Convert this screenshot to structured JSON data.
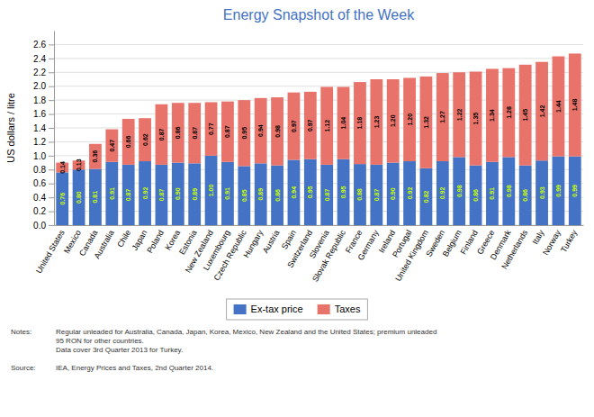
{
  "chart_data": {
    "type": "bar",
    "title": "Energy Snapshot of the Week",
    "y_label": "US dollars / litre",
    "categories": [
      "United States",
      "Mexico",
      "Canada",
      "Australia",
      "Chile",
      "Japan",
      "Poland",
      "Korea",
      "Estonia",
      "New Zealand",
      "Luxembourg",
      "Czech Republic",
      "Hungary",
      "Austria",
      "Spain",
      "Switzerland",
      "Slovenia",
      "Slovak Republic",
      "France",
      "Germany",
      "Ireland",
      "Portugal",
      "United Kingdom",
      "Sweden",
      "Belgium",
      "Finland",
      "Greece",
      "Denmark",
      "Netherlands",
      "Italy",
      "Norway",
      "Turkey"
    ],
    "series": [
      {
        "name": "Ex-tax price",
        "color": "#4472C4",
        "values": [
          0.76,
          0.8,
          0.81,
          0.91,
          0.87,
          0.92,
          0.87,
          0.9,
          0.89,
          1.0,
          0.91,
          0.85,
          0.89,
          0.86,
          0.94,
          0.95,
          0.87,
          0.95,
          0.88,
          0.87,
          0.9,
          0.92,
          0.82,
          0.92,
          0.98,
          0.86,
          0.91,
          0.98,
          0.86,
          0.93,
          0.99,
          0.99
        ],
        "value_labels": [
          "0.76",
          "0.80",
          "0.81",
          "0.91",
          "0.87",
          "0.92",
          "0.87",
          "0.90",
          "0.89",
          "1.00",
          "0.91",
          "0.85",
          "0.89",
          "0.86",
          "0.94",
          "0.95",
          "0.87",
          "0.95",
          "0.88",
          "0.87",
          "0.90",
          "0.92",
          "0.82",
          "0.92",
          "0.98",
          "0.86",
          "0.91",
          "0.98",
          "0.86",
          "0.93",
          "0.99",
          "0.99"
        ]
      },
      {
        "name": "Taxes",
        "color": "#E8736A",
        "values": [
          0.14,
          0.13,
          0.36,
          0.47,
          0.66,
          0.62,
          0.87,
          0.86,
          0.87,
          0.77,
          0.87,
          0.95,
          0.94,
          0.98,
          0.97,
          0.97,
          1.12,
          1.04,
          1.18,
          1.23,
          1.2,
          1.2,
          1.32,
          1.27,
          1.22,
          1.35,
          1.34,
          1.28,
          1.45,
          1.42,
          1.44,
          1.48
        ],
        "value_labels": [
          "0.14",
          "0.13",
          "0.36",
          "0.47",
          "0.66",
          "0.62",
          "0.87",
          "0.86",
          "0.87",
          "0.77",
          "0.87",
          "0.95",
          "0.94",
          "0.98",
          "0.97",
          "0.97",
          "1.12",
          "1.04",
          "1.18",
          "1.23",
          "1.20",
          "1.20",
          "1.32",
          "1.27",
          "1.22",
          "1.35",
          "1.34",
          "1.28",
          "1.45",
          "1.42",
          "1.44",
          "1.48"
        ]
      }
    ],
    "stacked": true,
    "data_labels": true,
    "ylim": [
      0,
      2.8
    ],
    "yticks": [
      {
        "value": 0.0,
        "label": "0.0"
      },
      0.2,
      0.4,
      0.6,
      0.8,
      {
        "value": 1.0,
        "label": "1.0"
      },
      1.2,
      1.4,
      1.6,
      1.8,
      {
        "value": 2.0,
        "label": "2.0"
      },
      2.2,
      2.4,
      2.6
    ],
    "grid": true,
    "legend": "bottom",
    "annotations": [
      {
        "label": "Notes:",
        "lines": [
          "Regular unleaded for Australia, Canada, Japan, Korea, Mexico, New Zealand and the United States; premium unleaded",
          "95 RON for other countries.",
          "Data cover 3rd Quarter 2013 for Turkey."
        ]
      },
      {
        "label": "Source:",
        "lines": [
          "IEA, Energy Prices and Taxes, 2nd Quarter 2014."
        ]
      }
    ]
  }
}
